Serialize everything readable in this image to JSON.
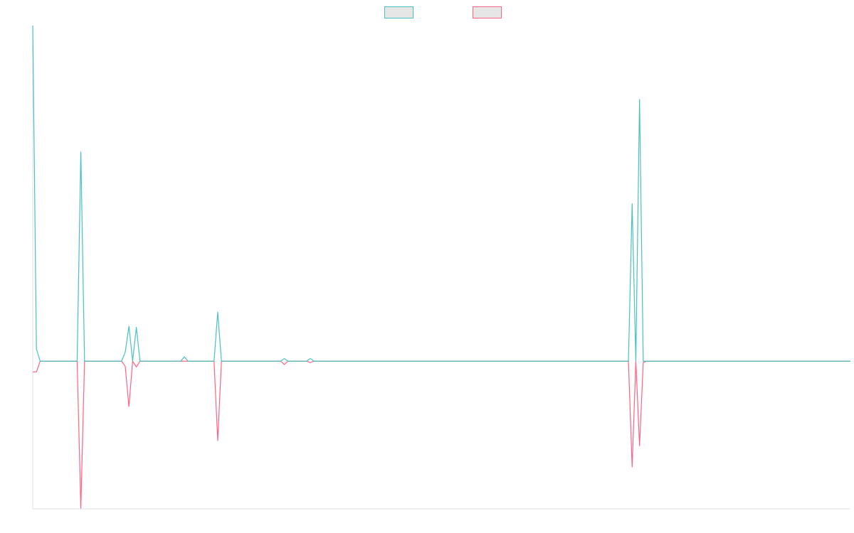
{
  "chart_data": {
    "type": "line",
    "x": [
      0,
      1,
      2,
      12,
      13,
      14,
      24,
      25,
      26,
      27,
      28,
      29,
      40,
      41,
      42,
      49,
      50,
      51,
      67,
      68,
      69,
      74,
      75,
      76,
      161,
      162,
      163,
      164,
      165,
      166,
      221
    ],
    "series": [
      {
        "color": "#ff6384",
        "values": [
          -3.2,
          -3.2,
          0,
          0,
          -43.8,
          0,
          0,
          -1.5,
          -13.5,
          0,
          -1.7,
          0,
          0,
          0,
          0,
          0,
          -23.7,
          0,
          0,
          -1,
          0,
          0,
          -0.4,
          0,
          0,
          -31.5,
          0,
          -25.2,
          -0.4,
          0,
          0
        ]
      },
      {
        "color": "#4bc0c0",
        "values": [
          100,
          3.6,
          0,
          0,
          62.4,
          0,
          0,
          2.7,
          10.4,
          0,
          10.1,
          0,
          0,
          1.3,
          0,
          0,
          14.6,
          0,
          0,
          0.8,
          0,
          0,
          0.8,
          0,
          0,
          46.9,
          0,
          78,
          0,
          0,
          0
        ]
      }
    ],
    "legend_order": [
      1,
      0
    ],
    "xlim": [
      0,
      221
    ],
    "ylim": [
      -44,
      100
    ],
    "grid": false,
    "legend": "top"
  }
}
